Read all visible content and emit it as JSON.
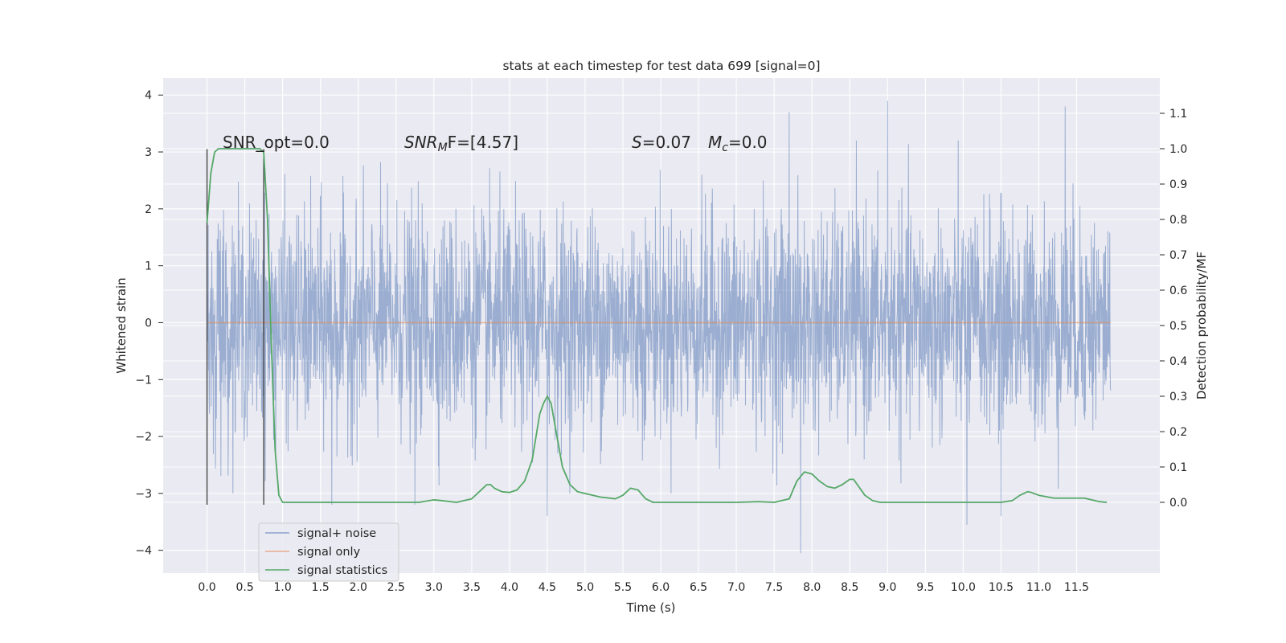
{
  "chart_data": {
    "type": "line",
    "title": "stats at each timestep for test data 699 [signal=0]",
    "xlabel": "Time (s)",
    "ylabel_left": "Whitened strain",
    "ylabel_right": "Detection probability/MF",
    "xlim": [
      -0.58,
      12.6
    ],
    "ylim_left": [
      -4.4,
      4.3
    ],
    "ylim_right": [
      -0.2,
      1.2
    ],
    "x_ticks": [
      "0.0",
      "0.5",
      "1.0",
      "1.5",
      "2.0",
      "2.5",
      "3.0",
      "3.5",
      "4.0",
      "4.5",
      "5.0",
      "5.5",
      "6.0",
      "6.5",
      "7.0",
      "7.5",
      "8.0",
      "8.5",
      "9.0",
      "9.5",
      "10.0",
      "10.5",
      "11.0",
      "11.5"
    ],
    "y_ticks_left": [
      "4",
      "3",
      "2",
      "1",
      "0",
      "−1",
      "−2",
      "−3",
      "−4"
    ],
    "y_ticks_right": [
      "1.1",
      "1.0",
      "0.9",
      "0.8",
      "0.7",
      "0.6",
      "0.5",
      "0.4",
      "0.3",
      "0.2",
      "0.1",
      "0.0"
    ],
    "grid": true,
    "legend_placement": "lower-left",
    "legend": [
      {
        "label": "signal+ noise",
        "color": "#4c72b0"
      },
      {
        "label": "signal only",
        "color": "#dd8452"
      },
      {
        "label": "signal statistics",
        "color": "#55a868"
      }
    ],
    "annotations": {
      "snr_opt": "SNR_opt=0.0",
      "snr_mf_prefix": "SNR",
      "snr_mf_sub": "M",
      "snr_mf_suffix": "F=[4.57]",
      "s_prefix": "S",
      "s_value": "=0.07",
      "mc_prefix": "M",
      "mc_sub": "c",
      "mc_value": "=0.0"
    },
    "vertical_markers": [
      0.0,
      0.75
    ],
    "series": [
      {
        "name": "signal+ noise",
        "axis": "left",
        "style": "noise band",
        "x_range": [
          0.0,
          11.95
        ],
        "amplitude_envelope": 1.6,
        "notable_peaks": [
          {
            "x": 9.0,
            "y": 3.9
          },
          {
            "x": 11.35,
            "y": 3.8
          },
          {
            "x": 7.7,
            "y": 3.7
          },
          {
            "x": 7.85,
            "y": -4.05
          },
          {
            "x": 10.05,
            "y": -3.55
          },
          {
            "x": 10.5,
            "y": -3.4
          },
          {
            "x": 4.5,
            "y": -3.4
          },
          {
            "x": 2.75,
            "y": -3.2
          },
          {
            "x": 1.65,
            "y": -3.2
          }
        ]
      },
      {
        "name": "signal only",
        "axis": "left",
        "x": [
          0.0,
          11.95
        ],
        "y": [
          0.0,
          0.0
        ]
      },
      {
        "name": "signal statistics",
        "axis": "right",
        "x": [
          0.0,
          0.05,
          0.1,
          0.15,
          0.2,
          0.3,
          0.4,
          0.5,
          0.6,
          0.7,
          0.75,
          0.8,
          0.85,
          0.9,
          0.95,
          1.0,
          1.1,
          1.5,
          2.0,
          2.5,
          2.8,
          3.0,
          3.1,
          3.3,
          3.5,
          3.6,
          3.7,
          3.75,
          3.8,
          3.9,
          4.0,
          4.1,
          4.2,
          4.3,
          4.4,
          4.45,
          4.5,
          4.55,
          4.6,
          4.7,
          4.8,
          4.9,
          5.0,
          5.2,
          5.4,
          5.5,
          5.6,
          5.7,
          5.8,
          5.9,
          6.0,
          6.5,
          7.0,
          7.3,
          7.5,
          7.7,
          7.8,
          7.9,
          8.0,
          8.1,
          8.2,
          8.3,
          8.4,
          8.5,
          8.55,
          8.6,
          8.7,
          8.8,
          8.9,
          9.0,
          9.5,
          10.0,
          10.5,
          10.65,
          10.75,
          10.85,
          10.9,
          11.0,
          11.2,
          11.4,
          11.6,
          11.7,
          11.8,
          11.9
        ],
        "y": [
          0.79,
          0.93,
          0.99,
          1.0,
          1.0,
          1.0,
          1.0,
          1.0,
          1.0,
          1.0,
          0.99,
          0.8,
          0.45,
          0.15,
          0.02,
          0.0,
          0.0,
          0.0,
          0.0,
          0.0,
          0.0,
          0.007,
          0.005,
          0.0,
          0.01,
          0.03,
          0.05,
          0.05,
          0.04,
          0.03,
          0.028,
          0.035,
          0.06,
          0.12,
          0.25,
          0.28,
          0.3,
          0.28,
          0.22,
          0.1,
          0.05,
          0.03,
          0.025,
          0.015,
          0.01,
          0.02,
          0.04,
          0.035,
          0.01,
          0.0,
          0.0,
          0.0,
          0.0,
          0.002,
          0.0,
          0.01,
          0.06,
          0.086,
          0.08,
          0.06,
          0.045,
          0.04,
          0.05,
          0.065,
          0.065,
          0.05,
          0.02,
          0.005,
          0.0,
          0.0,
          0.0,
          0.0,
          0.0,
          0.005,
          0.02,
          0.03,
          0.028,
          0.02,
          0.012,
          0.012,
          0.012,
          0.007,
          0.002,
          0.0
        ]
      }
    ]
  }
}
